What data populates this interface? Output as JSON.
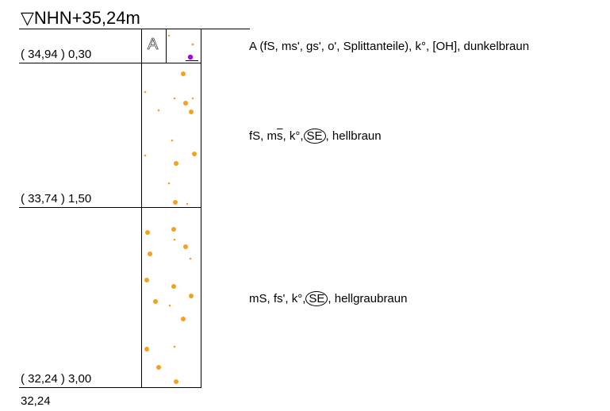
{
  "header": {
    "symbol": "▽",
    "elevation": "NHN+35,24m"
  },
  "layers": [
    {
      "depth_label": "( 34,94 ) 0,30",
      "symbol": "A",
      "description": {
        "text": "A (fS, ms', gs', o', Splittanteile), k°, [OH], dunkelbraun"
      }
    },
    {
      "depth_label": "( 33,74 ) 1,50",
      "description": {
        "pre": "fS, m",
        "overline": "s",
        "mid": ", k°,",
        "circle": "SE",
        "post": ", hellbraun"
      }
    },
    {
      "depth_label": "( 32,24 ) 3,00",
      "description": {
        "pre": "mS, fs', k°,",
        "circle": "SE",
        "post": ", hellgraubraun"
      }
    }
  ],
  "bottom_label": "32,24",
  "colors": {
    "sand": "#F5A01E",
    "organic": "#B200E0",
    "line": "#000000"
  }
}
